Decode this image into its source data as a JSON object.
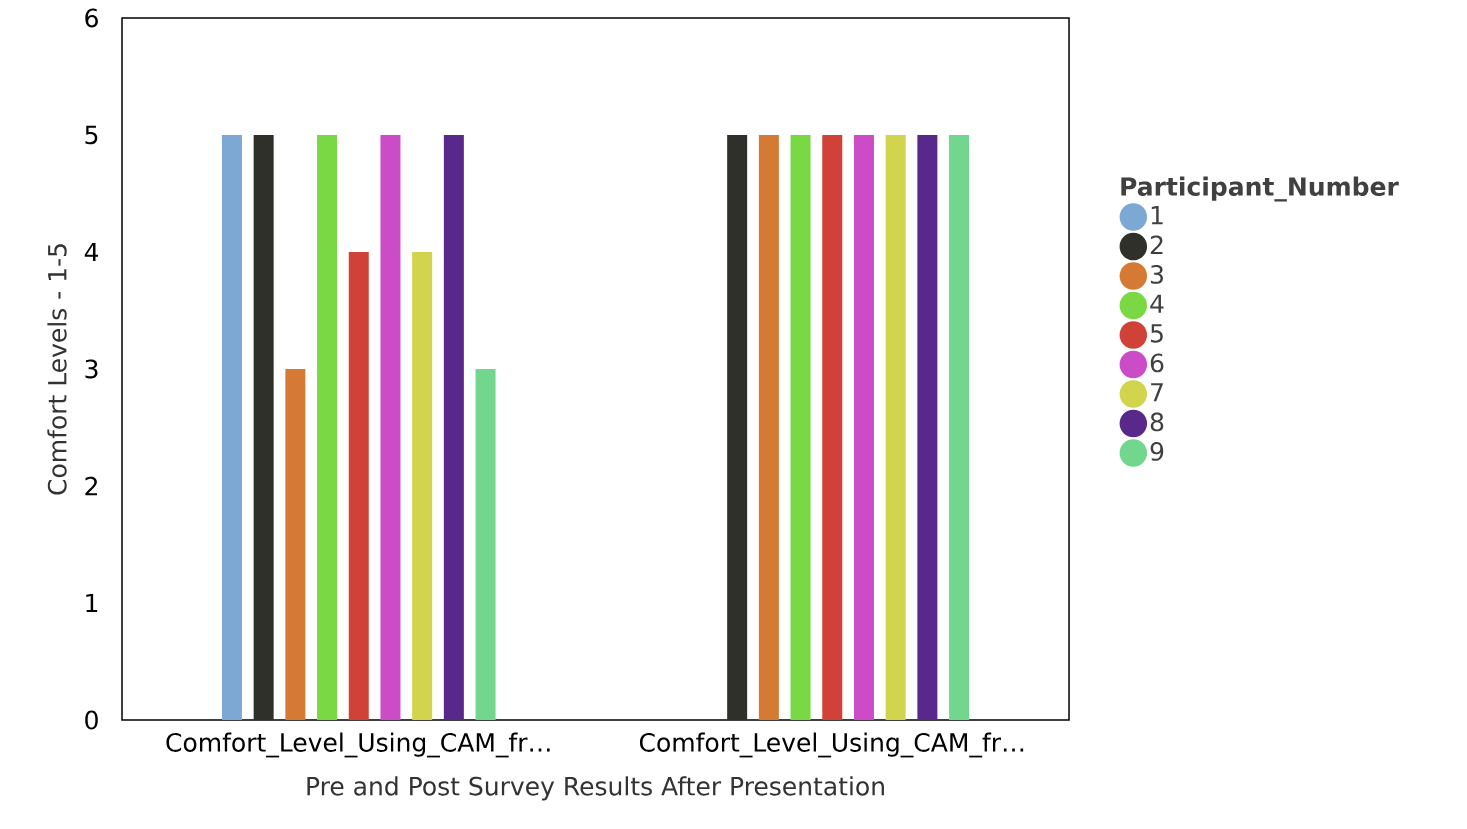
{
  "chart_data": {
    "type": "bar",
    "xlabel": "Pre and Post Survey Results After Presentation",
    "ylabel": "Comfort Levels - 1-5",
    "legend_title": "Participant_Number",
    "categories": [
      "Comfort_Level_Using_CAM_fr…",
      "Comfort_Level_Using_CAM_fr…"
    ],
    "series": [
      {
        "name": "1",
        "color": "#7ea8d4",
        "values": [
          5,
          null
        ]
      },
      {
        "name": "2",
        "color": "#30302a",
        "values": [
          5,
          5
        ]
      },
      {
        "name": "3",
        "color": "#d57a34",
        "values": [
          3,
          5
        ]
      },
      {
        "name": "4",
        "color": "#79d843",
        "values": [
          5,
          5
        ]
      },
      {
        "name": "5",
        "color": "#d04238",
        "values": [
          4,
          5
        ]
      },
      {
        "name": "6",
        "color": "#cc4cc8",
        "values": [
          5,
          5
        ]
      },
      {
        "name": "7",
        "color": "#d1d44c",
        "values": [
          4,
          5
        ]
      },
      {
        "name": "8",
        "color": "#58298a",
        "values": [
          5,
          5
        ]
      },
      {
        "name": "9",
        "color": "#73d68e",
        "values": [
          3,
          5
        ]
      }
    ],
    "ylim": [
      0,
      6
    ],
    "yticks": [
      0,
      1,
      2,
      3,
      4,
      5,
      6
    ],
    "grid": false,
    "legend": "right"
  }
}
